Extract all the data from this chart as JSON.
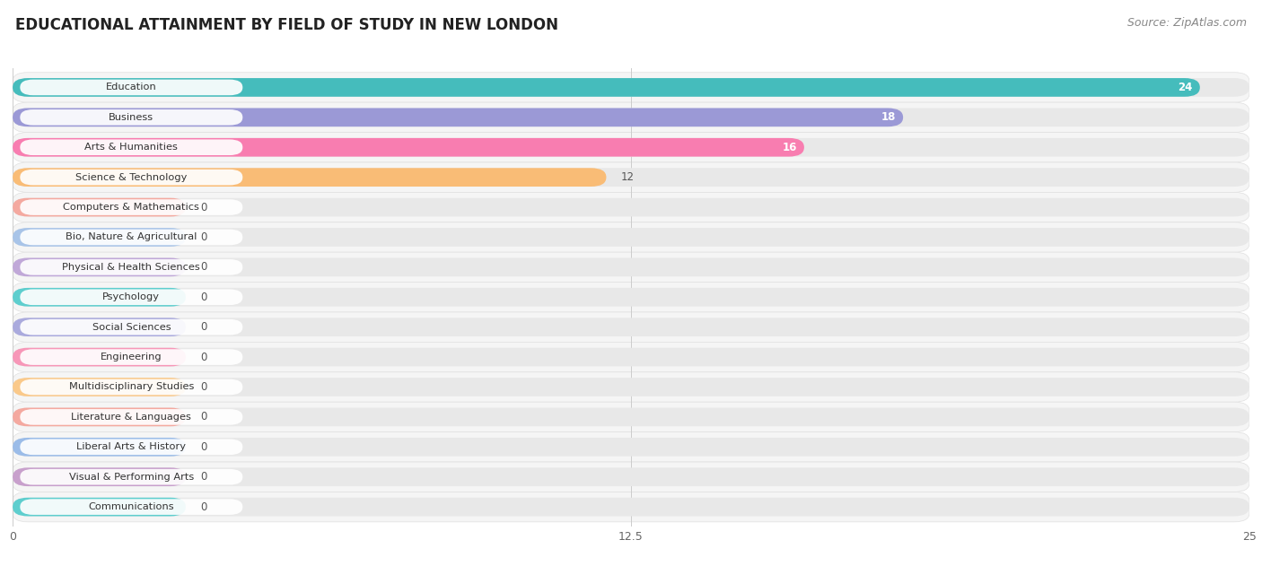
{
  "title": "EDUCATIONAL ATTAINMENT BY FIELD OF STUDY IN NEW LONDON",
  "source": "Source: ZipAtlas.com",
  "categories": [
    "Education",
    "Business",
    "Arts & Humanities",
    "Science & Technology",
    "Computers & Mathematics",
    "Bio, Nature & Agricultural",
    "Physical & Health Sciences",
    "Psychology",
    "Social Sciences",
    "Engineering",
    "Multidisciplinary Studies",
    "Literature & Languages",
    "Liberal Arts & History",
    "Visual & Performing Arts",
    "Communications"
  ],
  "values": [
    24,
    18,
    16,
    12,
    0,
    0,
    0,
    0,
    0,
    0,
    0,
    0,
    0,
    0,
    0
  ],
  "bar_colors": [
    "#45BCBC",
    "#9B99D6",
    "#F87DB0",
    "#F9BC76",
    "#F4A9A0",
    "#A8C4E8",
    "#C0A8D8",
    "#5ECECE",
    "#AAAADD",
    "#F797B8",
    "#FAC98A",
    "#F4A9A0",
    "#9BBCE8",
    "#C8A0CC",
    "#5ECECE"
  ],
  "zero_stub_colors": [
    "#F4A9A0",
    "#A8C4E8",
    "#C0A8D8",
    "#5ECECE",
    "#AAAADD",
    "#F797B8",
    "#FAC98A",
    "#F4A9A0",
    "#9BBCE8",
    "#C8A0CC",
    "#5ECECE"
  ],
  "xlim": [
    0,
    25
  ],
  "xticks": [
    0,
    12.5,
    25
  ],
  "row_bg_color": "#f2f2f2",
  "bar_track_color": "#e8e8e8",
  "title_fontsize": 12,
  "source_fontsize": 9
}
